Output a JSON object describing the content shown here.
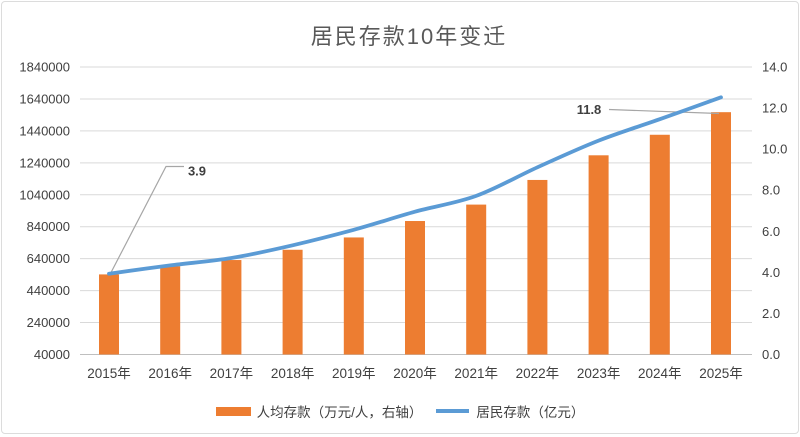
{
  "chart_data": {
    "type": "combo",
    "title": "居民存款10年变迁",
    "categories": [
      "2015年",
      "2016年",
      "2017年",
      "2018年",
      "2019年",
      "2020年",
      "2021年",
      "2022年",
      "2023年",
      "2024年",
      "2025年"
    ],
    "series": [
      {
        "name": "人均存款（万元/人，右轴）",
        "type": "bar",
        "axis": "right",
        "color": "#ED7D31",
        "values": [
          3.9,
          4.3,
          4.6,
          5.1,
          5.7,
          6.5,
          7.3,
          8.5,
          9.7,
          10.7,
          11.8
        ]
      },
      {
        "name": "居民存款（亿元）",
        "type": "line",
        "axis": "left",
        "color": "#5B9BD5",
        "values": [
          546000,
          598000,
          644000,
          724000,
          821000,
          934000,
          1033000,
          1212000,
          1379000,
          1513000,
          1650000
        ]
      }
    ],
    "left_axis": {
      "min": 40000,
      "max": 1840000,
      "step": 200000,
      "tick_labels": [
        "40000",
        "240000",
        "440000",
        "640000",
        "840000",
        "1040000",
        "1240000",
        "1440000",
        "1640000",
        "1840000"
      ]
    },
    "right_axis": {
      "min": 0,
      "max": 14,
      "step": 2,
      "tick_labels": [
        "0.0",
        "2.0",
        "4.0",
        "6.0",
        "8.0",
        "10.0",
        "12.0",
        "14.0"
      ]
    },
    "grid": true,
    "legend_position": "bottom",
    "annotations": [
      {
        "text": "3.9",
        "series": 0,
        "category": "2015年"
      },
      {
        "text": "11.8",
        "series": 0,
        "category": "2025年"
      }
    ]
  },
  "colors": {
    "bar": "#ED7D31",
    "line": "#5B9BD5",
    "grid": "#D9D9D9",
    "axis_line": "#BFBFBF",
    "axis_text": "#404040",
    "title_text": "#595959",
    "annotation_text": "#3F3F3F",
    "leader_line": "#A6A6A6",
    "background": "#FFFFFF",
    "card_border": "#DCDCDC"
  }
}
